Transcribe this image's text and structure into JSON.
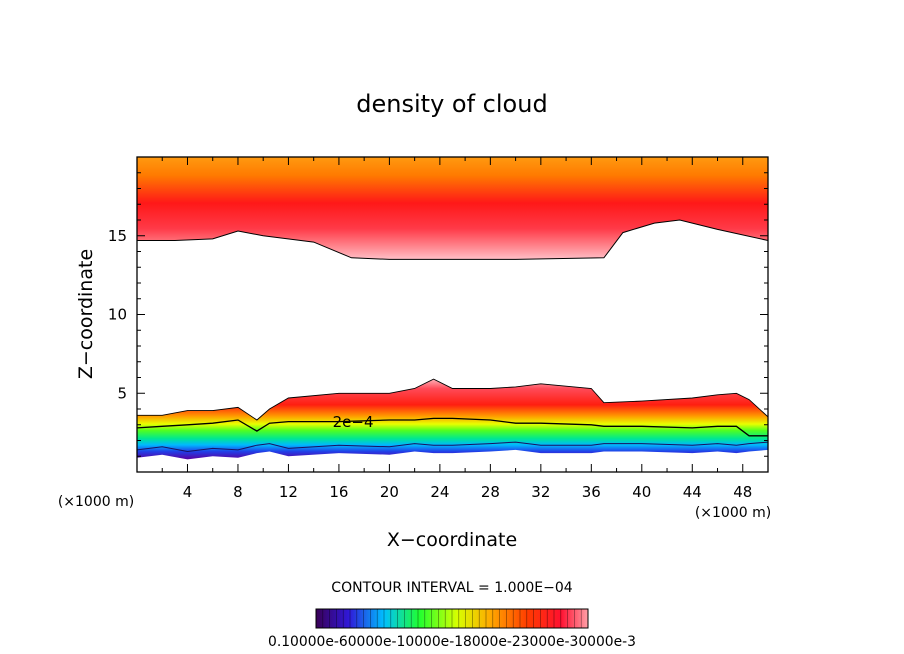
{
  "chart_data": {
    "type": "contour",
    "title": "density of cloud",
    "xlabel": "X−coordinate",
    "ylabel": "Z−coordinate",
    "x_unit_left": "(×1000 m)",
    "x_unit_right": "(×1000 m)",
    "xlim": [
      0,
      50
    ],
    "ylim": [
      0,
      20
    ],
    "x_ticks": [
      4,
      8,
      12,
      16,
      20,
      24,
      28,
      32,
      36,
      40,
      44,
      48
    ],
    "y_ticks": [
      5,
      10,
      15
    ],
    "contour_interval_text": "CONTOUR INTERVAL = 1.000E−04",
    "contour_label": "2e−4",
    "colorbar_labels_text": "0.10000e-60000e-10000e-18000e-23000e-30000e-3",
    "colormap": [
      "#3a0056",
      "#5a00a0",
      "#3018d8",
      "#1868ff",
      "#00c0ff",
      "#00e8a0",
      "#20ff30",
      "#88ff10",
      "#d8ff00",
      "#ffe000",
      "#ffaa00",
      "#ff7a00",
      "#ff3a00",
      "#ff0a10",
      "#ff5060",
      "#ffa0a8"
    ],
    "upper_layer": {
      "bottom_z": [
        14.7,
        14.7,
        14.8,
        15.3,
        15.0,
        14.6,
        13.6,
        13.5,
        13.5,
        13.5,
        13.6,
        15.2,
        15.8,
        16.0,
        15.4,
        14.7
      ],
      "bottom_x": [
        0,
        3,
        6,
        8,
        10,
        14,
        17,
        20,
        25,
        30,
        37,
        38.5,
        41,
        43,
        46,
        50
      ],
      "core_z": 17.3,
      "top_z": 20
    },
    "lower_layer": {
      "x": [
        0,
        2,
        4,
        6,
        8,
        9.5,
        10.5,
        12,
        16,
        20,
        22,
        23.5,
        25,
        28,
        30,
        32,
        36,
        37,
        40,
        44,
        46,
        47.5,
        48.5,
        50
      ],
      "top_z": [
        3.6,
        3.6,
        3.9,
        3.9,
        4.1,
        3.3,
        4.0,
        4.7,
        5.0,
        5.0,
        5.3,
        5.9,
        5.3,
        5.3,
        5.4,
        5.6,
        5.3,
        4.4,
        4.5,
        4.7,
        4.9,
        5.0,
        4.6,
        3.5
      ],
      "contour_2e4_z": [
        2.8,
        2.9,
        3.0,
        3.1,
        3.3,
        2.6,
        3.1,
        3.2,
        3.2,
        3.3,
        3.3,
        3.4,
        3.4,
        3.3,
        3.1,
        3.1,
        3.0,
        2.9,
        2.9,
        2.8,
        2.9,
        2.9,
        2.3,
        2.3
      ],
      "base_z": [
        0.9,
        1.1,
        0.8,
        1.0,
        0.9,
        1.2,
        1.3,
        1.0,
        1.2,
        1.1,
        1.3,
        1.2,
        1.2,
        1.3,
        1.4,
        1.2,
        1.2,
        1.3,
        1.3,
        1.2,
        1.3,
        1.2,
        1.3,
        1.4
      ]
    }
  }
}
